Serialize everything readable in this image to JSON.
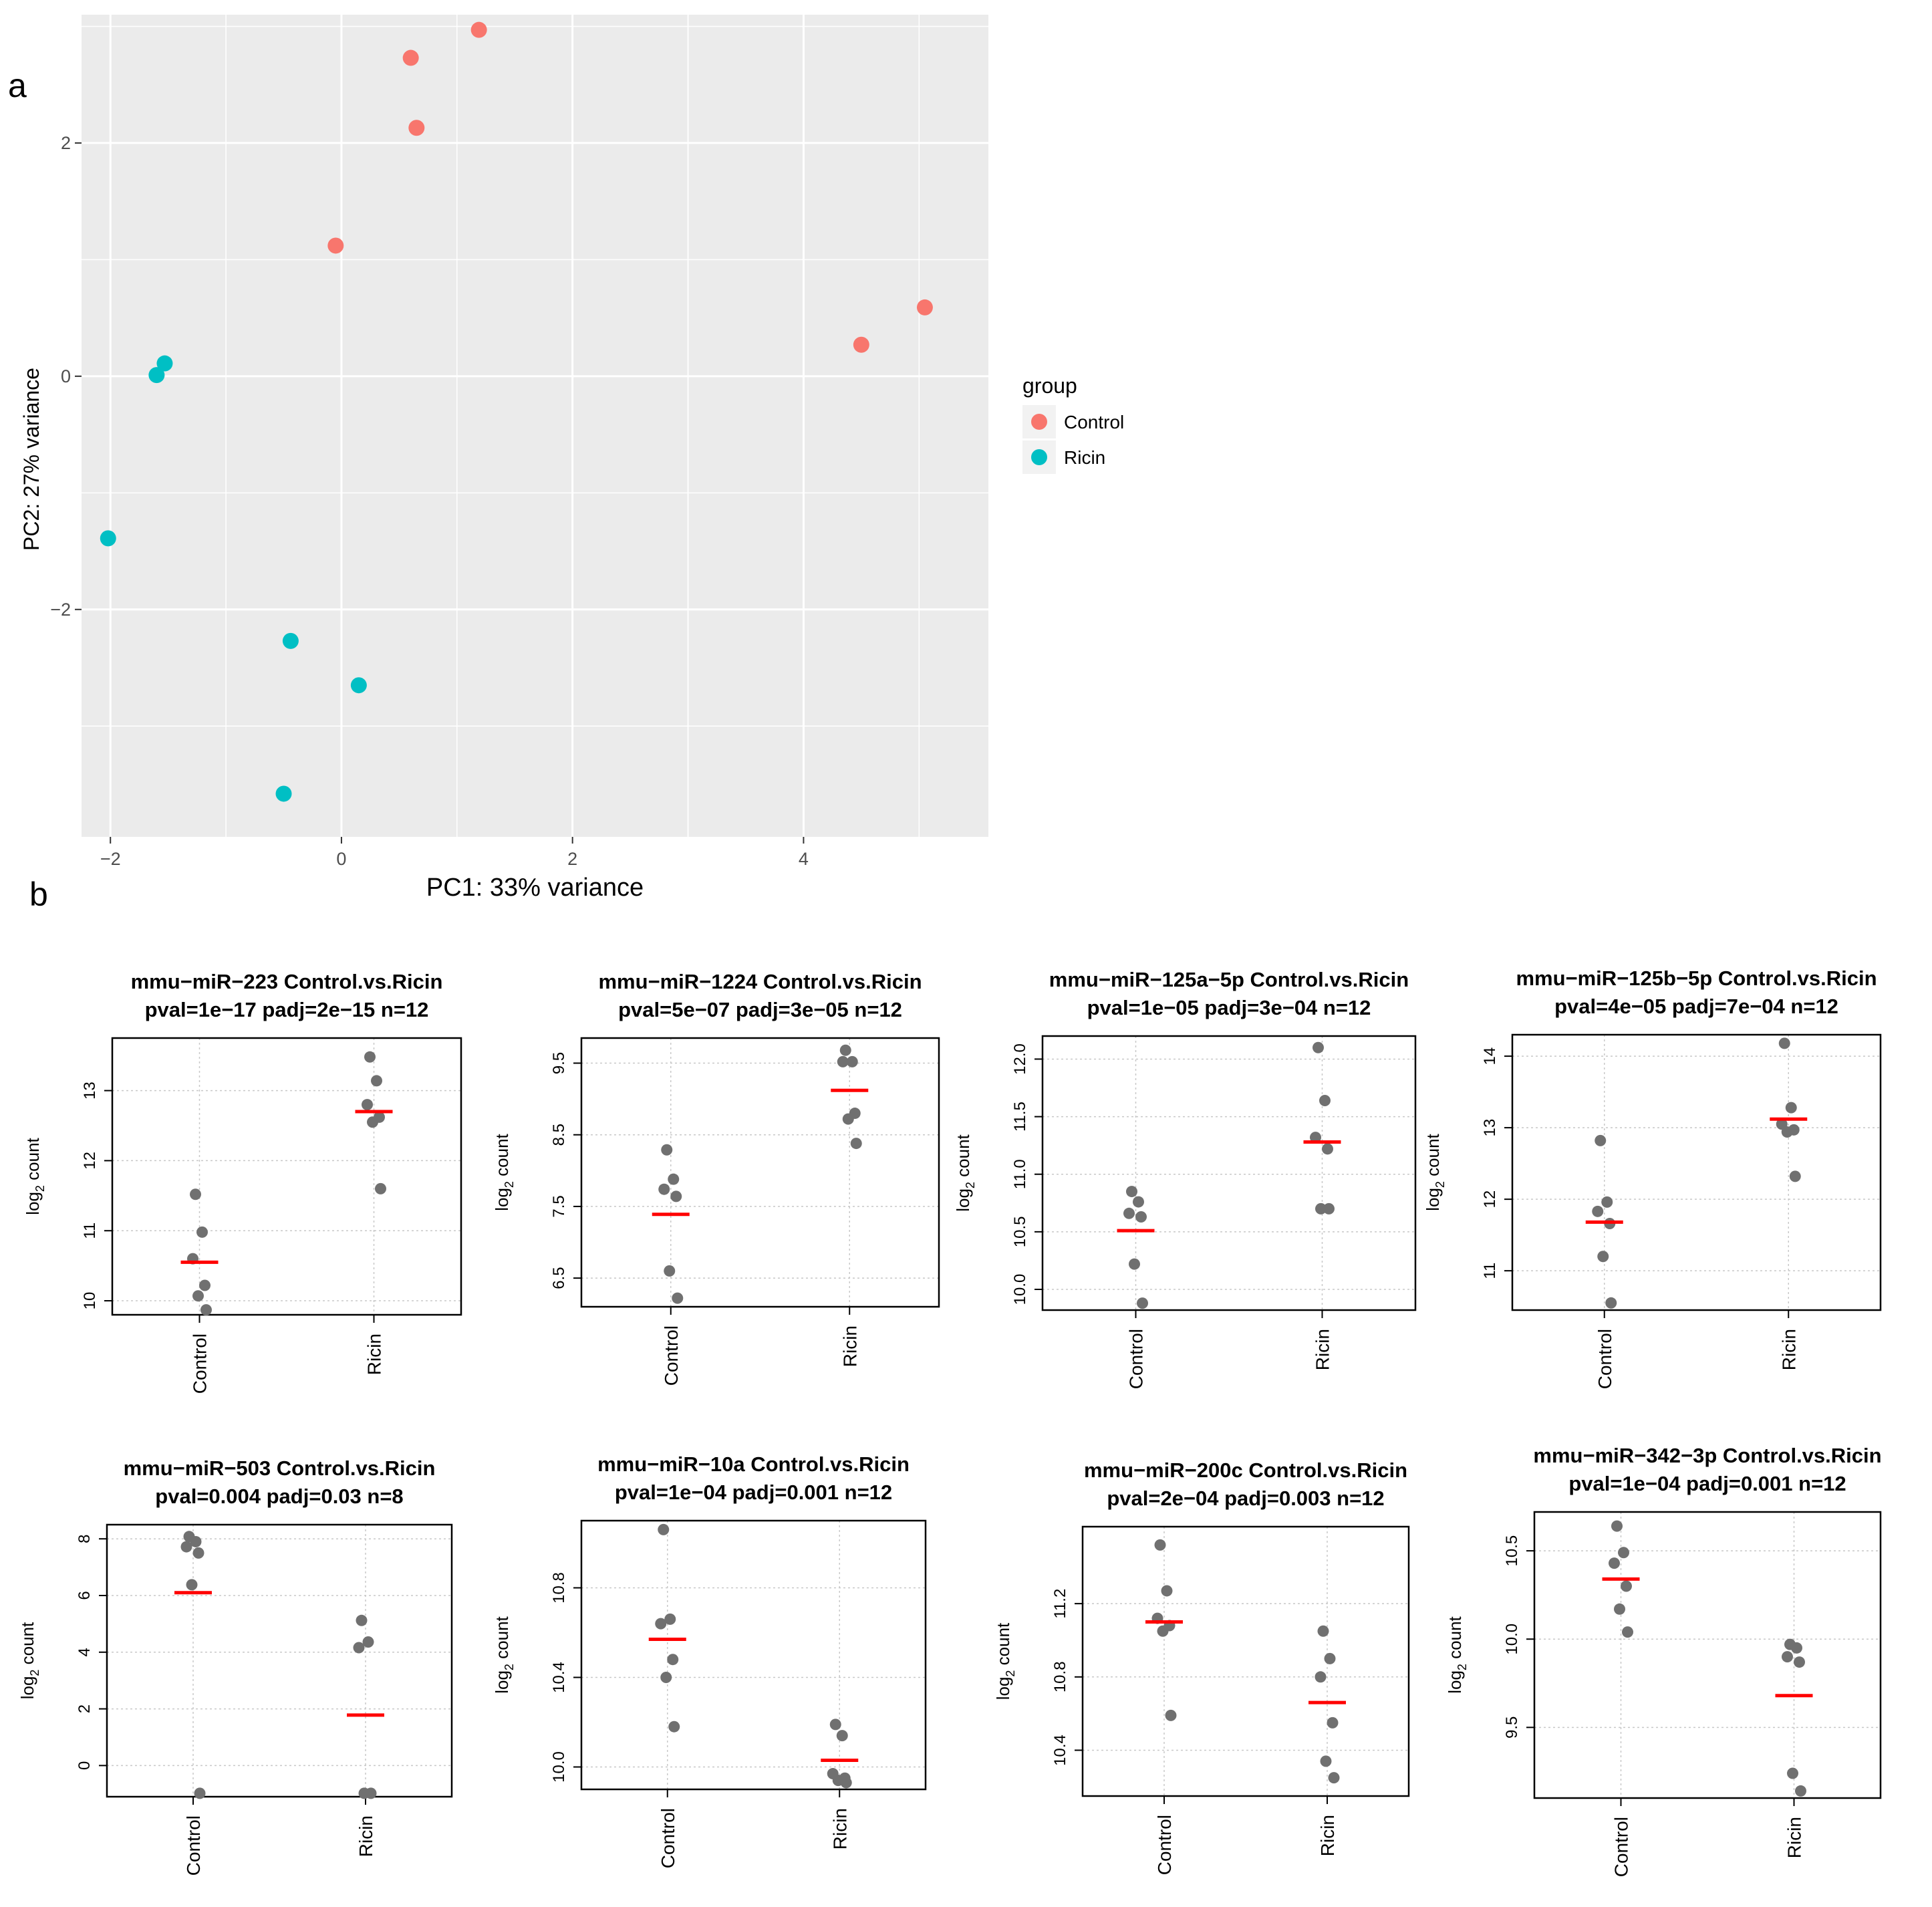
{
  "panel_labels": {
    "a": "a",
    "b": "b"
  },
  "colors": {
    "control": "#F8766D",
    "ricin": "#00BFC4",
    "pca_bg": "#EBEBEB",
    "pca_grid": "#FFFFFF",
    "dot": "#707070",
    "median": "#FF0000"
  },
  "chart_data": [
    {
      "type": "scatter",
      "panel": "a",
      "title": "",
      "xlabel": "PC1: 33% variance",
      "ylabel": "PC2: 27% variance",
      "xlim": [
        -2.25,
        5.6
      ],
      "ylim": [
        -3.95,
        3.1
      ],
      "x_ticks": [
        -2,
        0,
        2,
        4
      ],
      "x_tick_labels": [
        "−2",
        "0",
        "2",
        "4"
      ],
      "y_ticks": [
        -2,
        0,
        2
      ],
      "y_tick_labels": [
        "−2",
        "0",
        "2"
      ],
      "grid": true,
      "legend": {
        "title": "group",
        "position": "right",
        "entries": [
          "Control",
          "Ricin"
        ]
      },
      "series": [
        {
          "name": "Control",
          "points": [
            [
              0.6,
              2.73
            ],
            [
              1.19,
              2.97
            ],
            [
              0.65,
              2.13
            ],
            [
              -0.05,
              1.12
            ],
            [
              4.5,
              0.27
            ],
            [
              5.05,
              0.59
            ]
          ]
        },
        {
          "name": "Ricin",
          "points": [
            [
              -1.53,
              0.11
            ],
            [
              -1.6,
              0.01
            ],
            [
              -2.02,
              -1.39
            ],
            [
              -0.44,
              -2.27
            ],
            [
              0.15,
              -2.65
            ],
            [
              -0.5,
              -3.58
            ]
          ]
        }
      ]
    },
    {
      "type": "strip",
      "panel": "b",
      "title": [
        "mmu−miR−223 Control.vs.Ricin",
        "pval=1e−17 padj=2e−15 n=12"
      ],
      "ylabel_main": "log",
      "ylabel_sub": "2",
      "ylabel_rest": " count",
      "categories": [
        "Control",
        "Ricin"
      ],
      "ylim": [
        9.8,
        13.75
      ],
      "y_ticks": [
        10,
        11,
        12,
        13
      ],
      "y_tick_labels": [
        "10",
        "11",
        "12",
        "13"
      ],
      "values": [
        [
          11.52,
          10.98,
          10.6,
          10.22,
          10.07,
          9.87
        ],
        [
          13.48,
          13.14,
          12.8,
          12.62,
          12.55,
          11.6
        ]
      ],
      "medians": [
        10.55,
        12.7
      ]
    },
    {
      "type": "strip",
      "panel": "b",
      "title": [
        "mmu−miR−1224 Control.vs.Ricin",
        "pval=5e−07 padj=3e−05 n=12"
      ],
      "ylabel_main": "log",
      "ylabel_sub": "2",
      "ylabel_rest": " count",
      "categories": [
        "Control",
        "Ricin"
      ],
      "ylim": [
        6.1,
        9.85
      ],
      "y_ticks": [
        6.5,
        7.5,
        8.5,
        9.5
      ],
      "y_tick_labels": [
        "6.5",
        "7.5",
        "8.5",
        "9.5"
      ],
      "values": [
        [
          8.29,
          7.88,
          7.74,
          7.64,
          6.6,
          6.22
        ],
        [
          9.68,
          9.52,
          9.52,
          8.8,
          8.72,
          8.38
        ]
      ],
      "medians": [
        7.39,
        9.12
      ]
    },
    {
      "type": "strip",
      "panel": "b",
      "title": [
        "mmu−miR−125a−5p Control.vs.Ricin",
        "pval=1e−05 padj=3e−04 n=12"
      ],
      "ylabel_main": "log",
      "ylabel_sub": "2",
      "ylabel_rest": " count",
      "categories": [
        "Control",
        "Ricin"
      ],
      "ylim": [
        9.82,
        12.2
      ],
      "y_ticks": [
        10.0,
        10.5,
        11.0,
        11.5,
        12.0
      ],
      "y_tick_labels": [
        "10.0",
        "10.5",
        "11.0",
        "11.5",
        "12.0"
      ],
      "values": [
        [
          10.85,
          10.76,
          10.66,
          10.63,
          10.22,
          9.88
        ],
        [
          12.1,
          11.64,
          11.32,
          11.22,
          10.7,
          10.7
        ]
      ],
      "medians": [
        10.51,
        11.28
      ]
    },
    {
      "type": "strip",
      "panel": "b",
      "title": [
        "mmu−miR−125b−5p Control.vs.Ricin",
        "pval=4e−05 padj=7e−04 n=12"
      ],
      "ylabel_main": "log",
      "ylabel_sub": "2",
      "ylabel_rest": " count",
      "categories": [
        "Control",
        "Ricin"
      ],
      "ylim": [
        10.45,
        14.3
      ],
      "y_ticks": [
        11,
        12,
        13,
        14
      ],
      "y_tick_labels": [
        "11",
        "12",
        "13",
        "14"
      ],
      "values": [
        [
          12.82,
          11.96,
          11.83,
          11.66,
          11.2,
          10.55
        ],
        [
          14.18,
          13.28,
          13.05,
          12.97,
          12.94,
          12.32
        ]
      ],
      "medians": [
        11.68,
        13.12
      ]
    },
    {
      "type": "strip",
      "panel": "b",
      "title": [
        "mmu−miR−503 Control.vs.Ricin",
        "pval=0.004 padj=0.03 n=8"
      ],
      "ylabel_main": "log",
      "ylabel_sub": "2",
      "ylabel_rest": " count",
      "categories": [
        "Control",
        "Ricin"
      ],
      "ylim": [
        -1.1,
        8.5
      ],
      "y_ticks": [
        0,
        2,
        4,
        6,
        8
      ],
      "y_tick_labels": [
        "0",
        "2",
        "4",
        "6",
        "8"
      ],
      "values": [
        [
          8.08,
          7.9,
          7.72,
          7.5,
          6.38,
          -0.98
        ],
        [
          5.12,
          4.36,
          4.16,
          -0.98,
          -0.98
        ]
      ],
      "medians": [
        6.1,
        1.78
      ]
    },
    {
      "type": "strip",
      "panel": "b",
      "title": [
        "mmu−miR−10a Control.vs.Ricin",
        "pval=1e−04 padj=0.001 n=12"
      ],
      "ylabel_main": "log",
      "ylabel_sub": "2",
      "ylabel_rest": " count",
      "categories": [
        "Control",
        "Ricin"
      ],
      "ylim": [
        9.9,
        11.1
      ],
      "y_ticks": [
        10.0,
        10.4,
        10.8
      ],
      "y_tick_labels": [
        "10.0",
        "10.4",
        "10.8"
      ],
      "values": [
        [
          11.06,
          10.66,
          10.64,
          10.48,
          10.4,
          10.18
        ],
        [
          10.19,
          10.14,
          9.97,
          9.95,
          9.94,
          9.93
        ]
      ],
      "medians": [
        10.57,
        10.03
      ]
    },
    {
      "type": "strip",
      "panel": "b",
      "title": [
        "mmu−miR−200c Control.vs.Ricin",
        "pval=2e−04 padj=0.003 n=12"
      ],
      "ylabel_main": "log",
      "ylabel_sub": "2",
      "ylabel_rest": " count",
      "categories": [
        "Control",
        "Ricin"
      ],
      "ylim": [
        10.15,
        11.62
      ],
      "y_ticks": [
        10.4,
        10.8,
        11.2
      ],
      "y_tick_labels": [
        "10.4",
        "10.8",
        "11.2"
      ],
      "values": [
        [
          11.52,
          11.27,
          11.12,
          11.08,
          11.05,
          10.59
        ],
        [
          11.05,
          10.9,
          10.8,
          10.55,
          10.34,
          10.25
        ]
      ],
      "medians": [
        11.1,
        10.66
      ]
    },
    {
      "type": "strip",
      "panel": "b",
      "title": [
        "mmu−miR−342−3p Control.vs.Ricin",
        "pval=1e−04 padj=0.001 n=12"
      ],
      "ylabel_main": "log",
      "ylabel_sub": "2",
      "ylabel_rest": " count",
      "categories": [
        "Control",
        "Ricin"
      ],
      "ylim": [
        9.1,
        10.72
      ],
      "y_ticks": [
        9.5,
        10.0,
        10.5
      ],
      "y_tick_labels": [
        "9.5",
        "10.0",
        "10.5"
      ],
      "values": [
        [
          10.64,
          10.49,
          10.43,
          10.3,
          10.17,
          10.04
        ],
        [
          9.97,
          9.95,
          9.9,
          9.87,
          9.24,
          9.14
        ]
      ],
      "medians": [
        10.34,
        9.68
      ]
    }
  ]
}
